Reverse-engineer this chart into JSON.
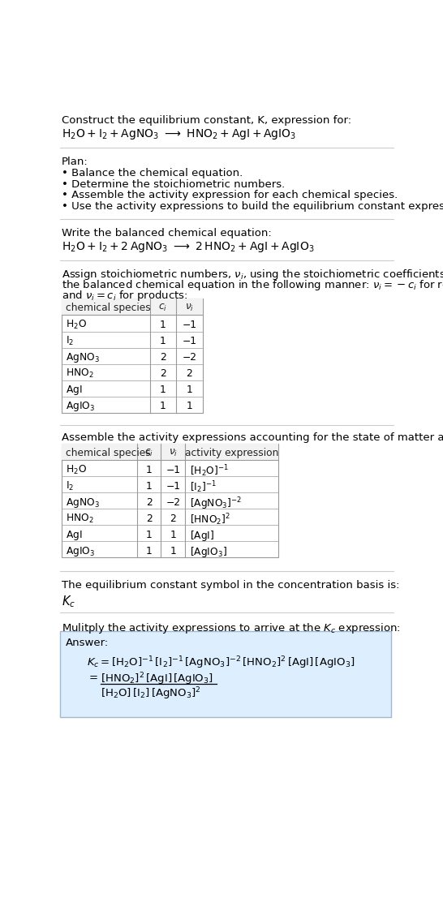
{
  "title_line1": "Construct the equilibrium constant, K, expression for:",
  "plan_header": "Plan:",
  "plan_items": [
    "• Balance the chemical equation.",
    "• Determine the stoichiometric numbers.",
    "• Assemble the activity expression for each chemical species.",
    "• Use the activity expressions to build the equilibrium constant expression."
  ],
  "balanced_header": "Write the balanced chemical equation:",
  "activity_intro": "Assemble the activity expressions accounting for the state of matter and νᵢ:",
  "kc_symbol_text": "The equilibrium constant symbol in the concentration basis is:",
  "multiply_text": "Mulitply the activity expressions to arrive at the Kₑ expression:",
  "answer_label": "Answer:",
  "answer_box_color": "#ddeeff",
  "answer_box_border": "#a0b8d0",
  "bg_color": "#ffffff",
  "text_color": "#000000",
  "table_border_color": "#aaaaaa",
  "separator_color": "#cccccc",
  "table1_species": [
    "H₂O",
    "I₂",
    "AgNO₃",
    "HNO₂",
    "AgI",
    "AgIO₃"
  ],
  "table1_ci": [
    "1",
    "1",
    "2",
    "2",
    "1",
    "1"
  ],
  "table1_vi": [
    "−1",
    "−1",
    "−2",
    "2",
    "1",
    "1"
  ],
  "activity_exprs_display": [
    "[H₂O]⁻¹",
    "[I₂]⁻¹",
    "[AgNO₃]⁻²",
    "[HNO₂]²",
    "[AgI]",
    "[AgIO₃]"
  ]
}
